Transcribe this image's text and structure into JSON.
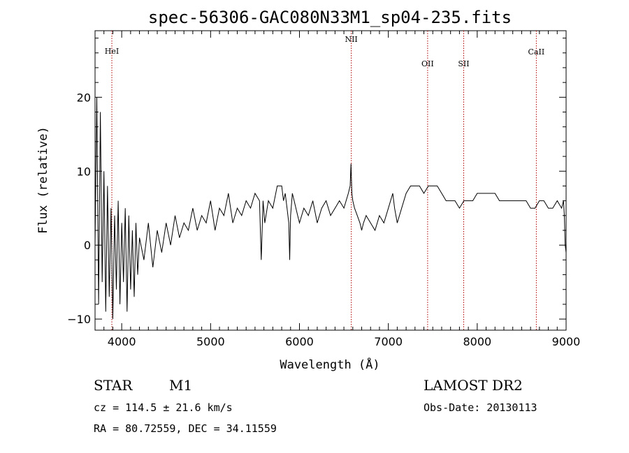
{
  "chart_data": {
    "type": "line",
    "title": "spec-56306-GAC080N33M1_sp04-235.fits",
    "xlabel": "Wavelength (Å)",
    "ylabel": "Flux (relative)",
    "xlim": [
      3700,
      9000
    ],
    "ylim": [
      -11.5,
      29
    ],
    "x_ticks": [
      4000,
      5000,
      6000,
      7000,
      8000,
      9000
    ],
    "x_tick_labels": [
      "4000",
      "5000",
      "6000",
      "7000",
      "8000",
      "9000"
    ],
    "y_ticks": [
      -10,
      0,
      10,
      20
    ],
    "y_tick_labels": [
      "−10",
      "0",
      "10",
      "20"
    ],
    "series": [
      {
        "x": [
          3700,
          3720,
          3740,
          3760,
          3780,
          3800,
          3820,
          3840,
          3860,
          3880,
          3900,
          3920,
          3940,
          3960,
          3980,
          4000,
          4020,
          4040,
          4060,
          4080,
          4100,
          4120,
          4140,
          4160,
          4180,
          4200,
          4250,
          4300,
          4350,
          4400,
          4450,
          4500,
          4550,
          4600,
          4650,
          4700,
          4750,
          4800,
          4850,
          4900,
          4950,
          5000,
          5050,
          5100,
          5150,
          5200,
          5250,
          5300,
          5350,
          5400,
          5450,
          5500,
          5550,
          5570,
          5590,
          5610,
          5650,
          5700,
          5750,
          5800,
          5820,
          5840,
          5860,
          5880,
          5890,
          5900,
          5920,
          5940,
          5960,
          5980,
          6000,
          6050,
          6100,
          6150,
          6200,
          6250,
          6300,
          6350,
          6400,
          6450,
          6500,
          6550,
          6570,
          6580,
          6590,
          6600,
          6620,
          6650,
          6680,
          6700,
          6720,
          6750,
          6800,
          6850,
          6900,
          6950,
          7000,
          7050,
          7070,
          7100,
          7150,
          7200,
          7250,
          7300,
          7350,
          7400,
          7450,
          7500,
          7550,
          7600,
          7650,
          7700,
          7750,
          7800,
          7850,
          7900,
          7950,
          8000,
          8050,
          8100,
          8150,
          8200,
          8250,
          8300,
          8350,
          8400,
          8450,
          8500,
          8550,
          8600,
          8650,
          8700,
          8750,
          8800,
          8850,
          8900,
          8950,
          8970,
          8980,
          8990,
          9000
        ],
        "y": [
          0,
          20,
          -8,
          18,
          -5,
          10,
          -9,
          8,
          -7,
          5,
          -10,
          4,
          -6,
          6,
          -8,
          3,
          -5,
          5,
          -9,
          4,
          -6,
          2,
          -7,
          3,
          -4,
          1,
          -2,
          3,
          -3,
          2,
          -1,
          3,
          0,
          4,
          1,
          3,
          2,
          5,
          2,
          4,
          3,
          6,
          2,
          5,
          4,
          7,
          3,
          5,
          4,
          6,
          5,
          7,
          6,
          -2,
          6,
          3,
          6,
          5,
          8,
          8,
          6,
          7,
          5,
          3,
          -2,
          4,
          7,
          6,
          5,
          4,
          3,
          5,
          4,
          6,
          3,
          5,
          6,
          4,
          5,
          6,
          5,
          7,
          8,
          11,
          7,
          6,
          5,
          4,
          3,
          2,
          3,
          4,
          3,
          2,
          4,
          3,
          5,
          7,
          5,
          3,
          5,
          7,
          8,
          8,
          8,
          7,
          8,
          8,
          8,
          7,
          6,
          6,
          6,
          5,
          6,
          6,
          6,
          7,
          7,
          7,
          7,
          7,
          6,
          6,
          6,
          6,
          6,
          6,
          6,
          5,
          5,
          6,
          6,
          5,
          5,
          6,
          5,
          6,
          4,
          0,
          -1
        ]
      }
    ],
    "emission_lines": [
      {
        "name": "HeI",
        "wavelength": 3889
      },
      {
        "name": "NII",
        "wavelength": 6583
      },
      {
        "name": "OII",
        "wavelength": 7442
      },
      {
        "name": "SII",
        "wavelength": 7848
      },
      {
        "name": "CaII",
        "wavelength": 8665
      }
    ],
    "line_color": "#000000",
    "marker_line_color": "#b00000"
  },
  "info": {
    "object_class": "STAR",
    "subclass": "M1",
    "survey": "LAMOST DR2",
    "cz": "cz = 114.5 ± 21.6 km/s",
    "obs_date": "Obs-Date: 20130113",
    "radec": "RA =  80.72559, DEC =  34.11559"
  }
}
